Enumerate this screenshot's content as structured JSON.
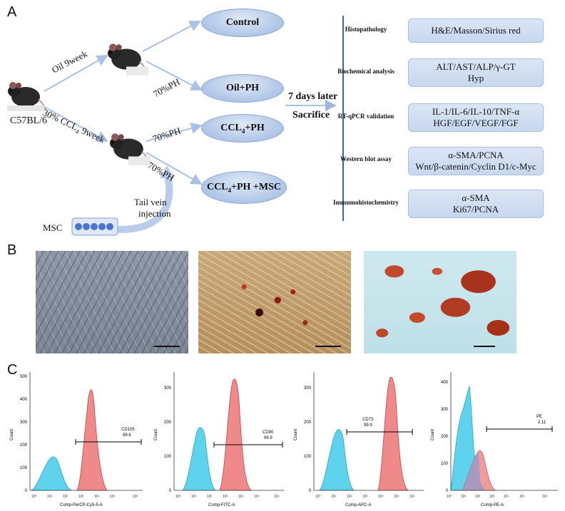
{
  "panel_a": {
    "letter": "A",
    "strain": "C57BL/6",
    "oil_arm": "Oil 9week",
    "ccl4_arm_prefix": "30% CCL",
    "ccl4_arm_sub": "4",
    "ccl4_arm_suffix": " 9week",
    "ph": "70%PH",
    "groups": {
      "control": "Control",
      "oil_ph": "Oil+PH",
      "ccl4_ph_prefix": "CCL",
      "ccl4_ph_sub": "4",
      "ccl4_ph_suffix": "+PH",
      "ccl4_msc_prefix": "CCL",
      "ccl4_msc_sub": "4",
      "ccl4_msc_suffix": "+PH +MSC"
    },
    "tail_vein": "Tail vein",
    "injection": "injection",
    "msc": "MSC",
    "days_later": "7 days later",
    "sacrifice": "Sacrifice",
    "assays": [
      {
        "label": "Histopathology",
        "lines": [
          "H&E/Masson/Sirius red"
        ]
      },
      {
        "label": "Biochemical analysis",
        "lines": [
          "ALT/AST/ALP/γ-GT",
          "Hyp"
        ]
      },
      {
        "label": "RT-qPCR validation",
        "lines": [
          "IL-1/IL-6/IL-10/TNF-α",
          "HGF/EGF/VEGF/FGF"
        ]
      },
      {
        "label": "Western blot assay",
        "lines": [
          "α-SMA/PCNA",
          "Wnt/β-catenin/Cyclin D1/c-Myc"
        ]
      },
      {
        "label": "Immumohistochemistry",
        "lines": [
          "α-SMA",
          "Ki67/PCNA"
        ]
      }
    ]
  },
  "panel_b": {
    "letter": "B"
  },
  "panel_c": {
    "letter": "C",
    "histograms": [
      {
        "xlabel": "Comp-PerCP-Cy5-5-A",
        "ylabel": "Count",
        "marker": "CD105",
        "percent": "99.6",
        "yticks": [
          "0",
          "100",
          "200",
          "300",
          "400",
          "500"
        ]
      },
      {
        "xlabel": "Comp-FITC-A",
        "ylabel": "Count",
        "marker": "CD90",
        "percent": "99.9",
        "yticks": [
          "0",
          "100",
          "200",
          "300"
        ]
      },
      {
        "xlabel": "Comp-APC-A",
        "ylabel": "Count",
        "marker": "CD73",
        "percent": "99.9",
        "yticks": [
          "0",
          "100",
          "200",
          "300"
        ]
      },
      {
        "xlabel": "Comp-PE-A",
        "ylabel": "Count",
        "marker": "PE",
        "percent": "2.11",
        "yticks": [
          "0",
          "100",
          "200",
          "300",
          "400"
        ]
      }
    ],
    "colors": {
      "control": "#5fd3ee",
      "stained": "#f08a8a",
      "overlap": "#9d9bc8"
    }
  }
}
